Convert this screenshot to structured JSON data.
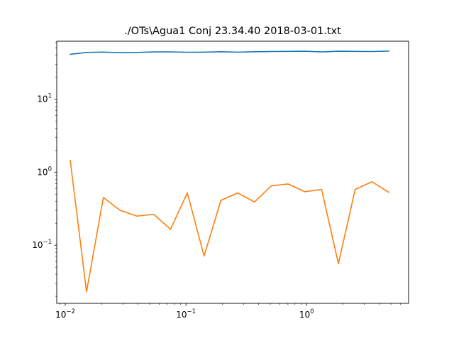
{
  "chart_data": {
    "type": "line",
    "title": "./OTs\\Agua1 Conj   23.34.40 2018-03-01.txt",
    "xlabel": "",
    "ylabel": "",
    "xscale": "log",
    "yscale": "log",
    "xlim": [
      0.0085,
      7.0
    ],
    "ylim": [
      0.016,
      62
    ],
    "grid": false,
    "legend": "none",
    "x_ticks": [
      {
        "value": 0.01,
        "label": "10",
        "exp": "−2"
      },
      {
        "value": 0.1,
        "label": "10",
        "exp": "−1"
      },
      {
        "value": 1,
        "label": "10",
        "exp": "0"
      }
    ],
    "y_ticks": [
      {
        "value": 0.1,
        "label": "10",
        "exp": "−1"
      },
      {
        "value": 1,
        "label": "10",
        "exp": "0"
      },
      {
        "value": 10,
        "label": "10",
        "exp": "1"
      }
    ],
    "x": [
      0.011,
      0.015,
      0.0207,
      0.0285,
      0.0393,
      0.0541,
      0.0745,
      0.1027,
      0.1414,
      0.1948,
      0.2683,
      0.3697,
      0.5093,
      0.7015,
      0.9664,
      1.331,
      1.834,
      2.526,
      3.48,
      4.794
    ],
    "series": [
      {
        "color": "#1f77b4",
        "values": [
          41,
          43.5,
          44,
          43.2,
          43.5,
          44.2,
          44.2,
          43.8,
          43.9,
          44.5,
          43.9,
          44.5,
          44.8,
          45,
          45.2,
          44.2,
          45.2,
          45,
          44.8,
          45.5
        ]
      },
      {
        "color": "#ff7f0e",
        "values": [
          1.45,
          0.023,
          0.45,
          0.3,
          0.25,
          0.265,
          0.165,
          0.52,
          0.071,
          0.41,
          0.52,
          0.39,
          0.65,
          0.69,
          0.54,
          0.58,
          0.056,
          0.58,
          0.74,
          0.53
        ]
      }
    ]
  }
}
